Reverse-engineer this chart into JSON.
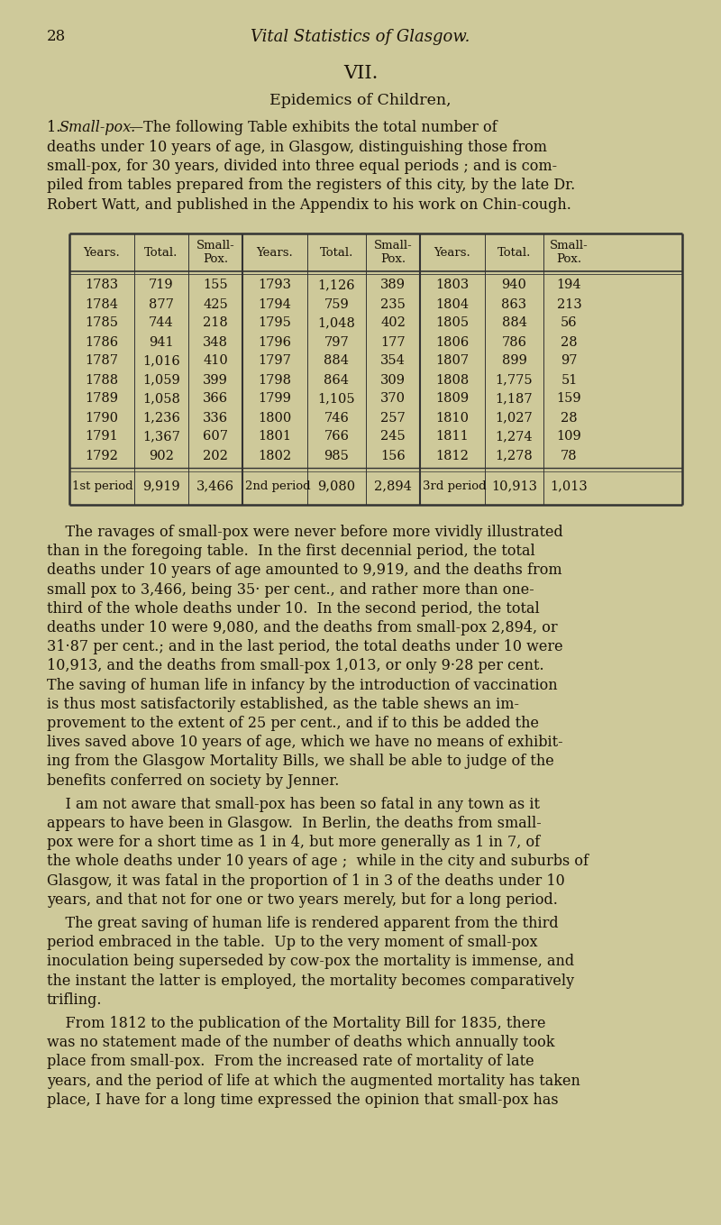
{
  "bg_color": "#cec99a",
  "text_color": "#1a1208",
  "page_number": "28",
  "header_title": "Vital Statistics of Glasgow.",
  "section_heading": "VII.",
  "section_subheading": "Epidemics of Children,",
  "table_headers": [
    "Years.",
    "Total.",
    "Small-\nPox.",
    "Years.",
    "Total.",
    "Small-\nPox.",
    "Years.",
    "Total.",
    "Small-\nPox."
  ],
  "table_data": [
    [
      "1783",
      "719",
      "155",
      "1793",
      "1,126",
      "389",
      "1803",
      "940",
      "194"
    ],
    [
      "1784",
      "877",
      "425",
      "1794",
      "759",
      "235",
      "1804",
      "863",
      "213"
    ],
    [
      "1785",
      "744",
      "218",
      "1795",
      "1,048",
      "402",
      "1805",
      "884",
      "56"
    ],
    [
      "1786",
      "941",
      "348",
      "1796",
      "797",
      "177",
      "1806",
      "786",
      "28"
    ],
    [
      "1787",
      "1,016",
      "410",
      "1797",
      "884",
      "354",
      "1807",
      "899",
      "97"
    ],
    [
      "1788",
      "1,059",
      "399",
      "1798",
      "864",
      "309",
      "1808",
      "1,775",
      "51"
    ],
    [
      "1789",
      "1,058",
      "366",
      "1799",
      "1,105",
      "370",
      "1809",
      "1,187",
      "159"
    ],
    [
      "1790",
      "1,236",
      "336",
      "1800",
      "746",
      "257",
      "1810",
      "1,027",
      "28"
    ],
    [
      "1791",
      "1,367",
      "607",
      "1801",
      "766",
      "245",
      "1811",
      "1,274",
      "109"
    ],
    [
      "1792",
      "902",
      "202",
      "1802",
      "985",
      "156",
      "1812",
      "1,278",
      "78"
    ]
  ],
  "table_totals": [
    "1st period",
    "9,919",
    "3,466",
    "2nd period",
    "9,080",
    "2,894",
    "3rd period",
    "10,913",
    "1,013"
  ],
  "intro_line1_a": "1. ",
  "intro_line1_b": "Small-pox.",
  "intro_line1_c": "—The following Table exhibits the total number of",
  "intro_lines_rest": [
    "deaths under 10 years of age, in Glasgow, distinguishing those from",
    "small-pox, for 30 years, divided into three equal periods ; and is com-",
    "piled from tables prepared from the registers of this city, by the late Dr.",
    "Robert Watt, and published in the Appendix to his work on Chin-cough."
  ],
  "body_para1_lines": [
    "    The ravages of small-pox were never before more vividly illustrated",
    "than in the foregoing table.  In the first decennial period, the total",
    "deaths under 10 years of age amounted to 9,919, and the deaths from",
    "small pox to 3,466, being 35· per cent., and rather more than one-",
    "third of the whole deaths under 10.  In the second period, the total",
    "deaths under 10 were 9,080, and the deaths from small-pox 2,894, or",
    "31·87 per cent.; and in the last period, the total deaths under 10 were",
    "10,913, and the deaths from small-pox 1,013, or only 9·28 per cent.",
    "The saving of human life in infancy by the introduction of vaccination",
    "is thus most satisfactorily established, as the table shews an im-",
    "provement to the extent of 25 per cent., and if to this be added the",
    "lives saved above 10 years of age, which we have no means of exhibit-",
    "ing from the Glasgow Mortality Bills, we shall be able to judge of the",
    "benefits conferred on society by Jenner."
  ],
  "body_para2_lines": [
    "    I am not aware that small-pox has been so fatal in any town as it",
    "appears to have been in Glasgow.  In Berlin, the deaths from small-",
    "pox were for a short time as 1 in 4, but more generally as 1 in 7, of",
    "the whole deaths under 10 years of age ;  while in the city and suburbs of",
    "Glasgow, it was fatal in the proportion of 1 in 3 of the deaths under 10",
    "years, and that not for one or two years merely, but for a long period."
  ],
  "body_para3_lines": [
    "    The great saving of human life is rendered apparent from the third",
    "period embraced in the table.  Up to the very moment of small-pox",
    "inoculation being superseded by cow-pox the mortality is immense, and",
    "the instant the latter is employed, the mortality becomes comparatively",
    "trifling."
  ],
  "body_para4_lines": [
    "    From 1812 to the publication of the Mortality Bill for 1835, there",
    "was no statement made of the number of deaths which annually took",
    "place from small-pox.  From the increased rate of mortality of late",
    "years, and the period of life at which the augmented mortality has taken",
    "place, I have for a long time expressed the opinion that small-pox has"
  ]
}
